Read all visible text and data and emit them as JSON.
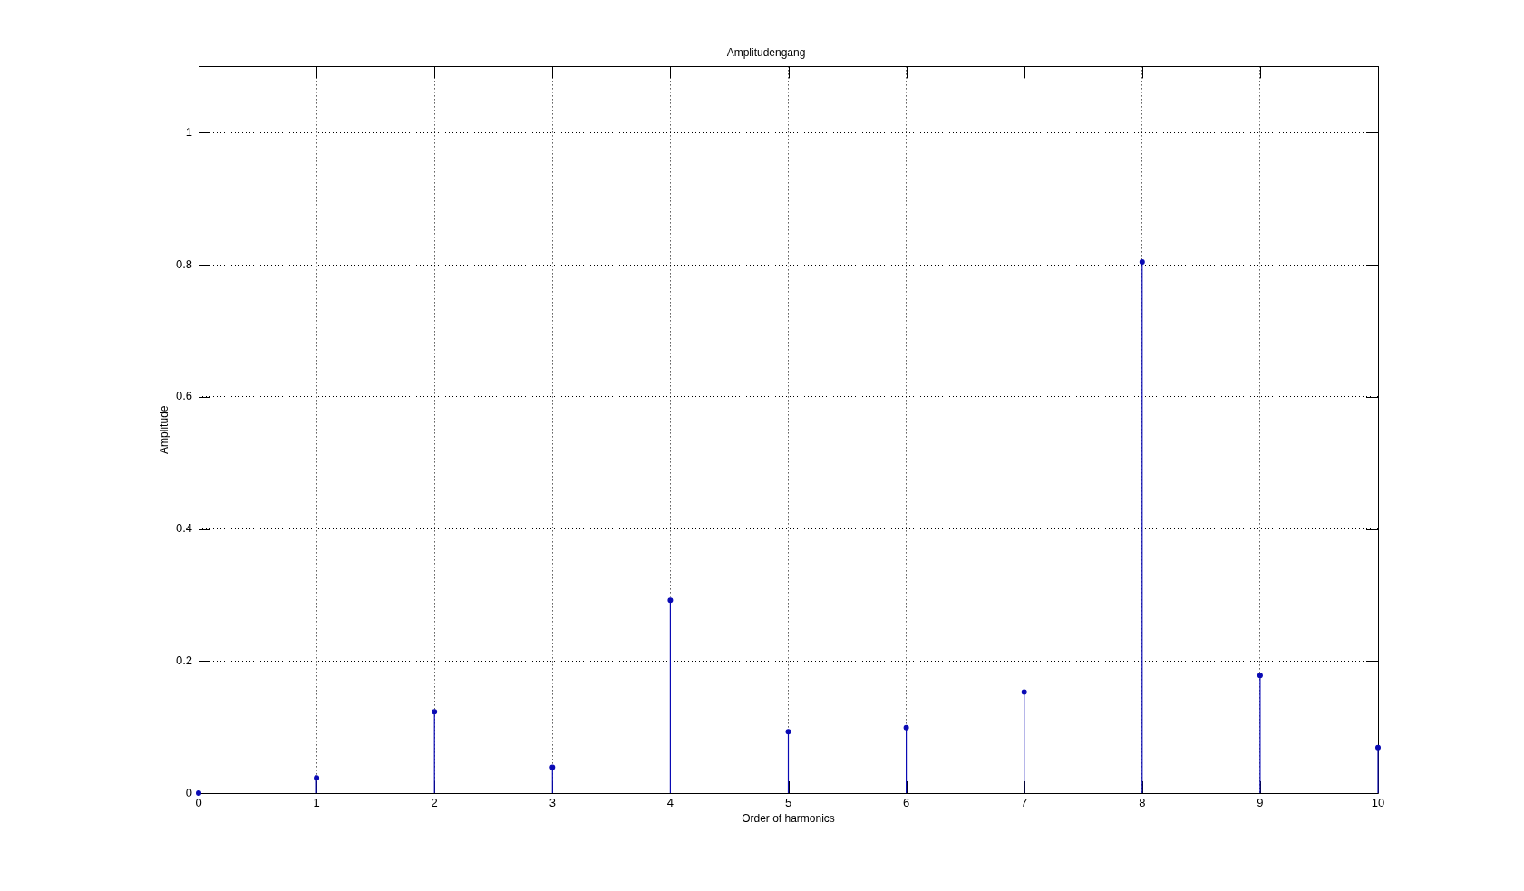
{
  "chart_data": {
    "type": "lollipop",
    "title": "Amplitudengang",
    "xlabel": "Order of harmonics",
    "ylabel": "Amplitude",
    "x": [
      0,
      1,
      2,
      3,
      4,
      5,
      6,
      7,
      8,
      9,
      10
    ],
    "values": [
      0,
      0.023,
      0.123,
      0.039,
      0.292,
      0.093,
      0.099,
      0.153,
      0.804,
      0.178,
      0.069
    ],
    "color": "#0a0ab4",
    "xlim": [
      0,
      10
    ],
    "xticks": [
      0,
      1,
      2,
      3,
      4,
      5,
      6,
      7,
      8,
      9,
      10
    ],
    "ylim": [
      0,
      1.1
    ],
    "yticks": [
      0,
      0.2,
      0.4,
      0.6,
      0.8,
      1
    ],
    "grid": true,
    "marker": "circle"
  }
}
